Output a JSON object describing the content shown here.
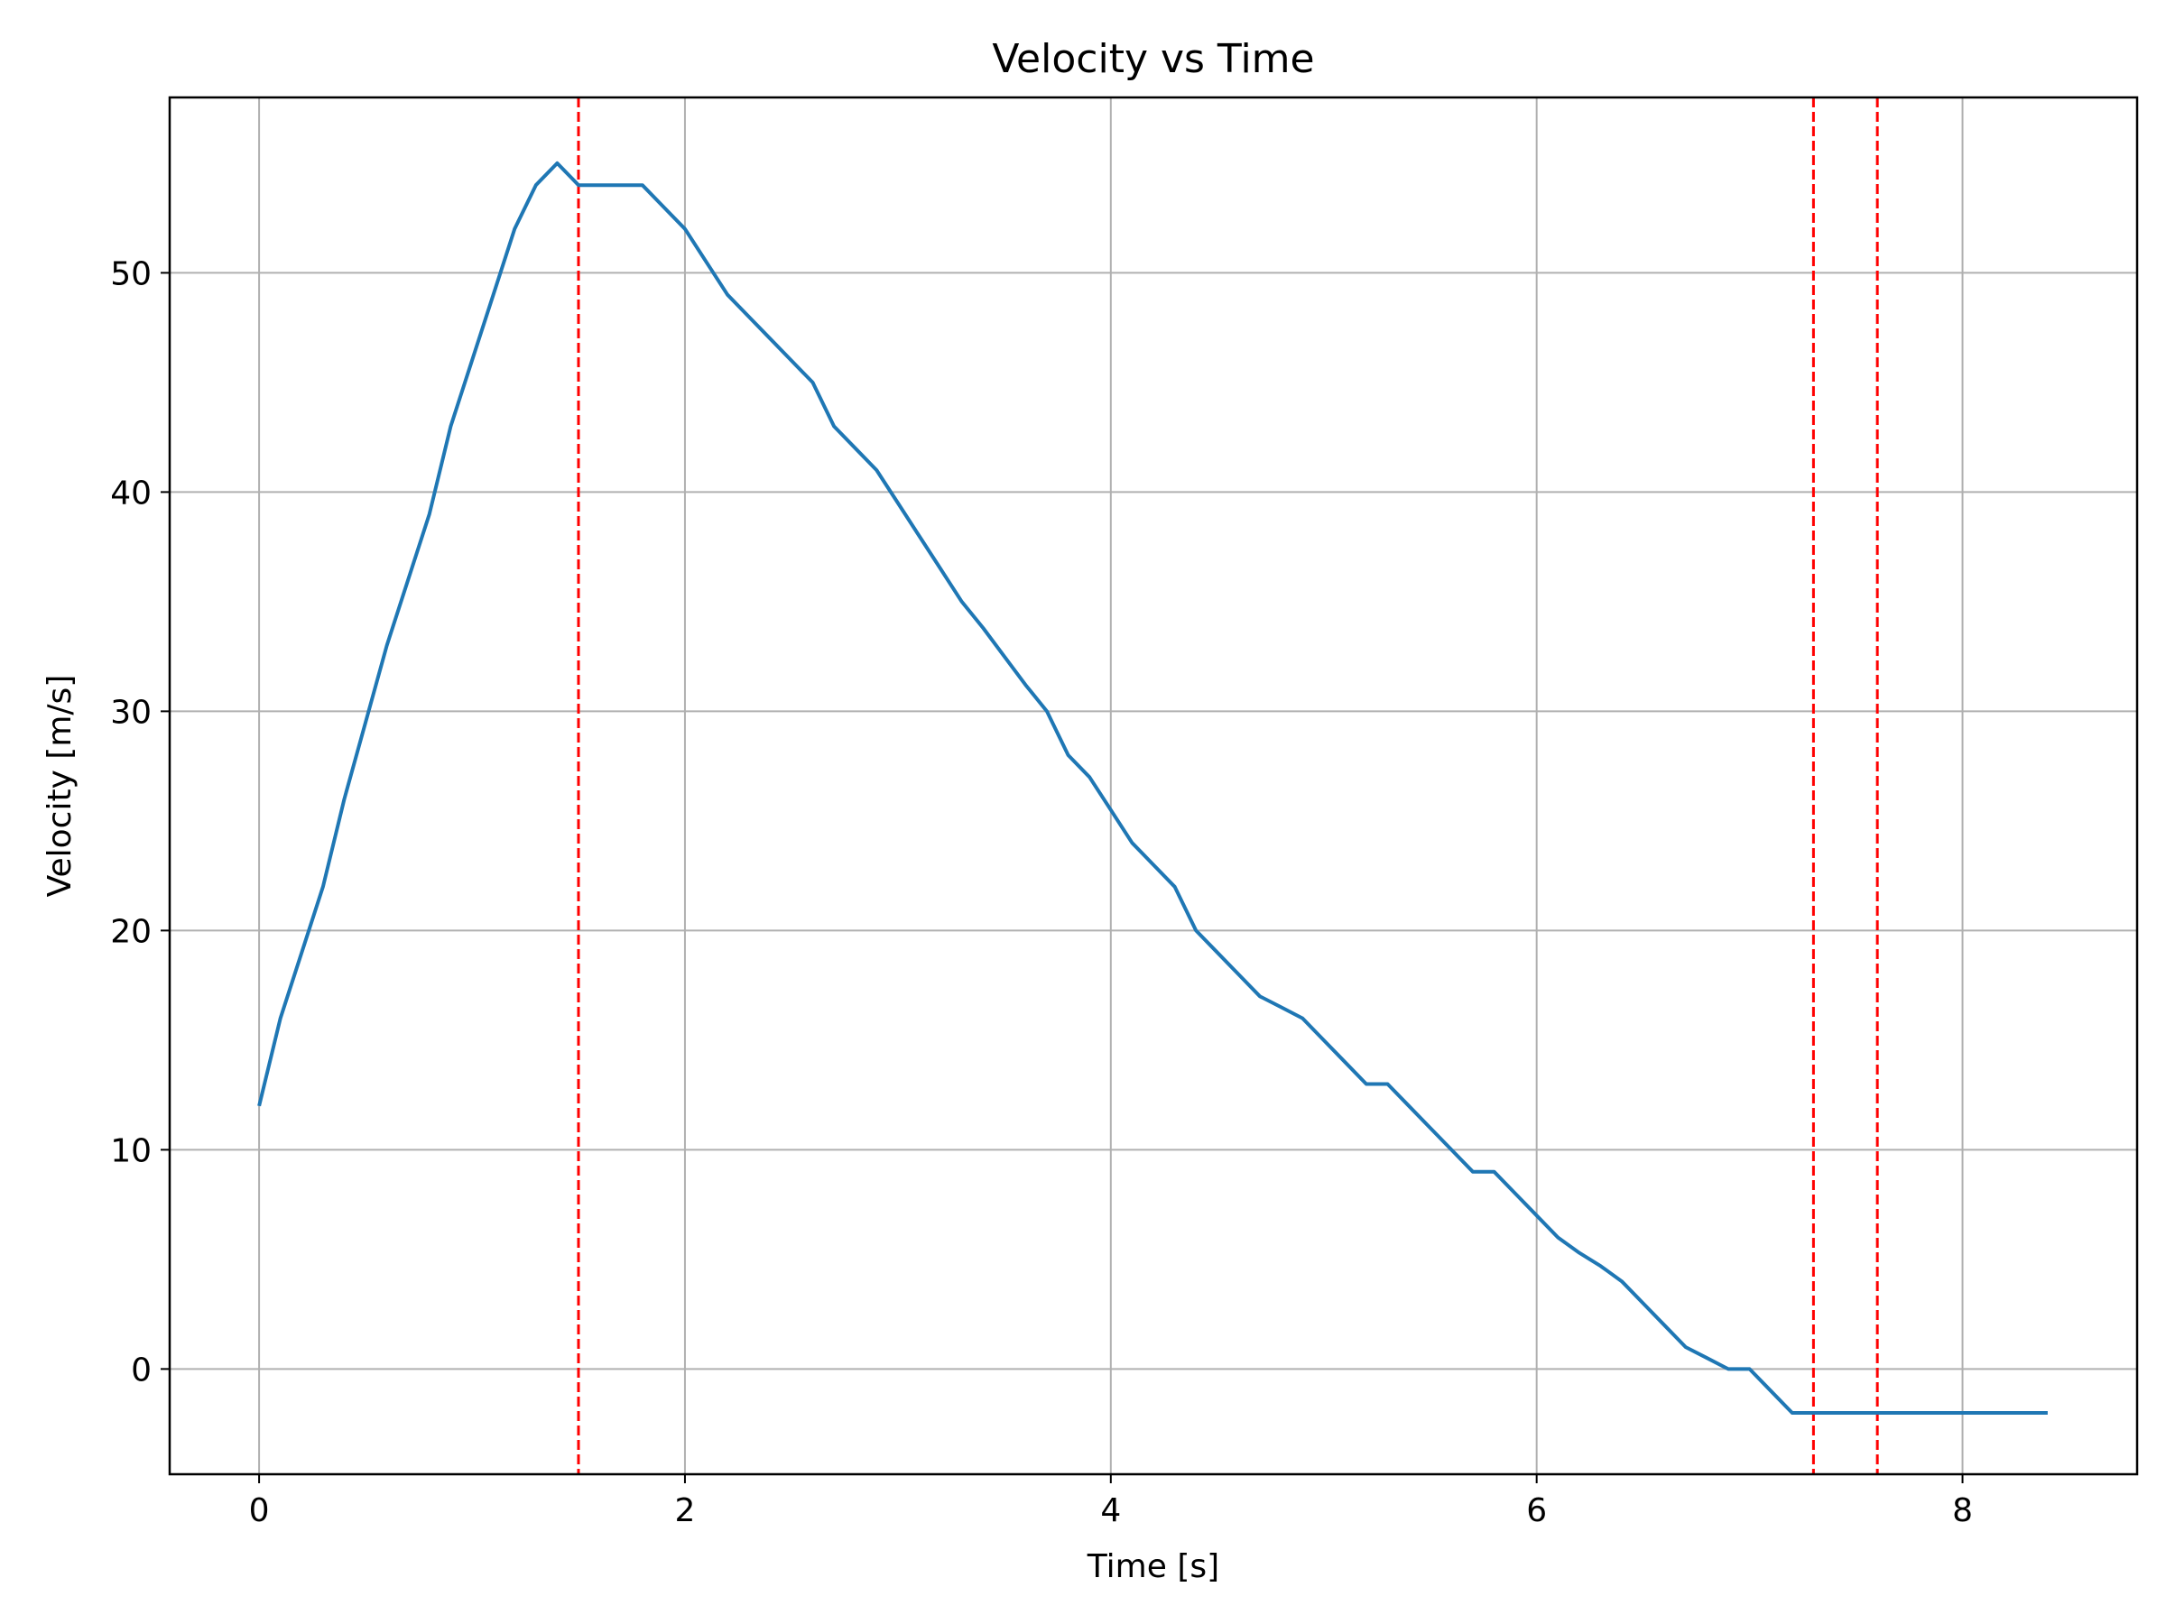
{
  "chart_data": {
    "type": "line",
    "title": "Velocity vs Time",
    "xlabel": "Time [s]",
    "ylabel": "Velocity [m/s]",
    "xlim": [
      -0.42,
      8.82
    ],
    "ylim": [
      -4.8,
      58.0
    ],
    "xticks": [
      0,
      2,
      4,
      6,
      8
    ],
    "yticks": [
      0,
      10,
      20,
      30,
      40,
      50
    ],
    "grid": true,
    "colors": {
      "line": "#1f77b4",
      "markers": "#ff0000",
      "grid": "#b0b0b0"
    },
    "series": [
      {
        "x": [
          0.0,
          0.1,
          0.2,
          0.3,
          0.4,
          0.5,
          0.6,
          0.7,
          0.8,
          0.9,
          1.0,
          1.1,
          1.2,
          1.3,
          1.4,
          1.5,
          1.6,
          1.7,
          1.8,
          1.9,
          2.0,
          2.1,
          2.2,
          2.3,
          2.4,
          2.5,
          2.6,
          2.7,
          2.8,
          2.9,
          3.0,
          3.1,
          3.2,
          3.3,
          3.4,
          3.5,
          3.6,
          3.7,
          3.8,
          3.9,
          4.0,
          4.1,
          4.2,
          4.3,
          4.4,
          4.5,
          4.6,
          4.7,
          4.8,
          4.9,
          5.0,
          5.1,
          5.2,
          5.3,
          5.4,
          5.5,
          5.6,
          5.7,
          5.8,
          5.9,
          6.0,
          6.1,
          6.2,
          6.3,
          6.4,
          6.5,
          6.6,
          6.7,
          6.8,
          6.9,
          7.0,
          7.1,
          7.2,
          7.3,
          7.4,
          7.5,
          7.6,
          7.7,
          7.8,
          7.9,
          8.0,
          8.1,
          8.2,
          8.3,
          8.4
        ],
        "values": [
          12,
          16,
          19,
          22,
          26,
          29.5,
          33,
          36,
          39,
          43,
          46,
          49,
          52,
          54,
          55,
          54,
          54,
          54,
          54,
          53,
          52,
          50.5,
          49,
          48,
          47,
          46,
          45,
          43,
          42,
          41,
          39.5,
          38,
          36.5,
          35,
          33.8,
          32.5,
          31.2,
          30,
          28,
          27,
          25.5,
          24,
          23,
          22,
          20,
          19,
          18,
          17,
          16.5,
          16,
          15,
          14,
          13,
          13,
          12,
          11,
          10,
          9,
          9,
          8,
          7,
          6,
          5.3,
          4.7,
          4,
          3,
          2,
          1,
          0.5,
          0,
          0,
          -1,
          -2,
          -2,
          -2,
          -2,
          -2,
          -2,
          -2,
          -2,
          -2,
          -2,
          -2,
          -2,
          -2
        ]
      }
    ],
    "vlines": {
      "x": [
        1.5,
        7.3,
        7.6
      ],
      "style": "dashed"
    }
  }
}
